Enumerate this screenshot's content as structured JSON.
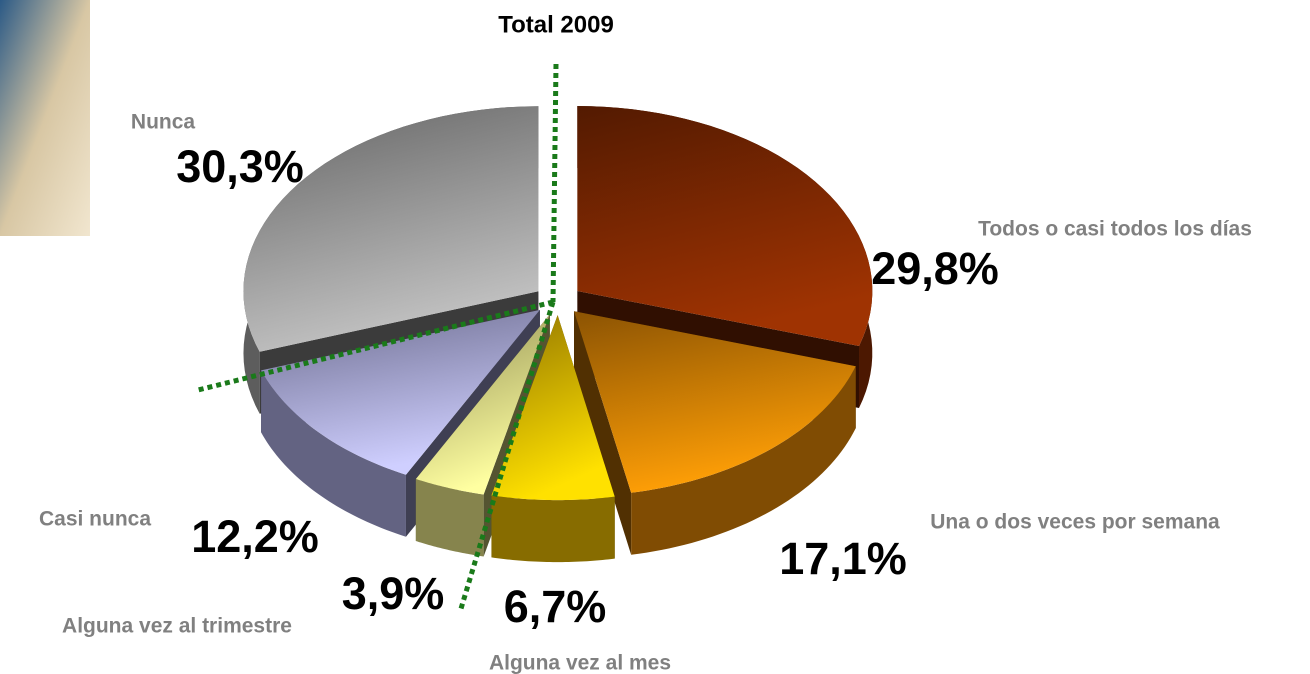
{
  "chart_data": {
    "type": "pie",
    "title": "Total 2009",
    "categories": [
      "Todos o casi todos los días",
      "Una o dos veces por semana",
      "Alguna vez al mes",
      "Alguna vez al trimestre",
      "Casi nunca",
      "Nunca"
    ],
    "values": [
      29.8,
      17.1,
      6.7,
      3.9,
      12.2,
      30.3
    ],
    "value_labels": [
      "29,8%",
      "17,1%",
      "6,7%",
      "3,9%",
      "12,2%",
      "30,3%"
    ],
    "colors": [
      "#8a2c02",
      "#e88a05",
      "#f5c400",
      "#f4f08c",
      "#b4b4ec",
      "#a9a9a9"
    ]
  }
}
